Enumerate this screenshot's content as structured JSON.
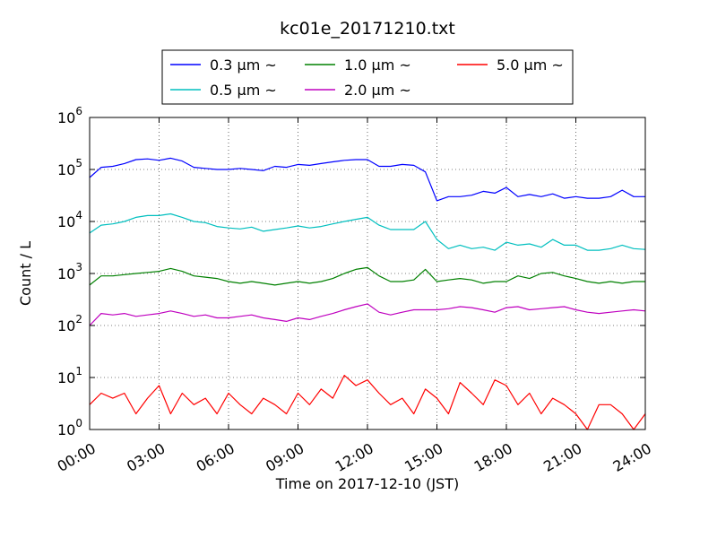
{
  "chart_data": {
    "type": "line",
    "title": "kc01e_20171210.txt",
    "xlabel": "Time on 2017-12-10 (JST)",
    "ylabel": "Count / L",
    "yscale": "log",
    "ylim": [
      1,
      1000000
    ],
    "xlim": [
      "00:00",
      "24:00"
    ],
    "xticks": [
      "00:00",
      "03:00",
      "06:00",
      "09:00",
      "12:00",
      "15:00",
      "18:00",
      "21:00",
      "24:00"
    ],
    "yticks": [
      {
        "base": "10",
        "exp": "0"
      },
      {
        "base": "10",
        "exp": "1"
      },
      {
        "base": "10",
        "exp": "2"
      },
      {
        "base": "10",
        "exp": "3"
      },
      {
        "base": "10",
        "exp": "4"
      },
      {
        "base": "10",
        "exp": "5"
      },
      {
        "base": "10",
        "exp": "6"
      }
    ],
    "grid": true,
    "legend_position": "top-center",
    "series": [
      {
        "name": "0.3 μm ~",
        "color": "#0000ff",
        "x": [
          "00:00",
          "00:30",
          "01:00",
          "01:30",
          "02:00",
          "02:30",
          "03:00",
          "03:30",
          "04:00",
          "04:30",
          "05:00",
          "05:30",
          "06:00",
          "06:30",
          "07:00",
          "07:30",
          "08:00",
          "08:30",
          "09:00",
          "09:30",
          "10:00",
          "10:30",
          "11:00",
          "11:30",
          "12:00",
          "12:30",
          "13:00",
          "13:30",
          "14:00",
          "14:30",
          "15:00",
          "15:30",
          "16:00",
          "16:30",
          "17:00",
          "17:30",
          "18:00",
          "18:30",
          "19:00",
          "19:30",
          "20:00",
          "20:30",
          "21:00",
          "21:30",
          "22:00",
          "22:30",
          "23:00",
          "23:30",
          "24:00"
        ],
        "values": [
          70000,
          110000,
          115000,
          130000,
          155000,
          160000,
          150000,
          165000,
          145000,
          110000,
          105000,
          100000,
          100000,
          105000,
          100000,
          95000,
          115000,
          110000,
          125000,
          120000,
          130000,
          140000,
          150000,
          155000,
          155000,
          115000,
          115000,
          125000,
          120000,
          90000,
          25000,
          30000,
          30000,
          32000,
          38000,
          35000,
          45000,
          30000,
          33000,
          30000,
          34000,
          28000,
          30000,
          28000,
          28000,
          30000,
          40000,
          30000,
          30000
        ]
      },
      {
        "name": "0.5 μm ~",
        "color": "#00bfbf",
        "x": [
          "00:00",
          "00:30",
          "01:00",
          "01:30",
          "02:00",
          "02:30",
          "03:00",
          "03:30",
          "04:00",
          "04:30",
          "05:00",
          "05:30",
          "06:00",
          "06:30",
          "07:00",
          "07:30",
          "08:00",
          "08:30",
          "09:00",
          "09:30",
          "10:00",
          "10:30",
          "11:00",
          "11:30",
          "12:00",
          "12:30",
          "13:00",
          "13:30",
          "14:00",
          "14:30",
          "15:00",
          "15:30",
          "16:00",
          "16:30",
          "17:00",
          "17:30",
          "18:00",
          "18:30",
          "19:00",
          "19:30",
          "20:00",
          "20:30",
          "21:00",
          "21:30",
          "22:00",
          "22:30",
          "23:00",
          "23:30",
          "24:00"
        ],
        "values": [
          6000,
          8500,
          9000,
          10000,
          12000,
          13000,
          13000,
          14000,
          12000,
          10000,
          9500,
          8000,
          7500,
          7200,
          7800,
          6500,
          7000,
          7500,
          8200,
          7500,
          8000,
          9000,
          10000,
          11000,
          12000,
          8500,
          7000,
          7000,
          7000,
          10000,
          4500,
          3000,
          3500,
          3000,
          3200,
          2800,
          4000,
          3500,
          3700,
          3200,
          4500,
          3500,
          3500,
          2800,
          2800,
          3000,
          3500,
          3000,
          2900
        ]
      },
      {
        "name": "1.0 μm ~",
        "color": "#008000",
        "x": [
          "00:00",
          "00:30",
          "01:00",
          "01:30",
          "02:00",
          "02:30",
          "03:00",
          "03:30",
          "04:00",
          "04:30",
          "05:00",
          "05:30",
          "06:00",
          "06:30",
          "07:00",
          "07:30",
          "08:00",
          "08:30",
          "09:00",
          "09:30",
          "10:00",
          "10:30",
          "11:00",
          "11:30",
          "12:00",
          "12:30",
          "13:00",
          "13:30",
          "14:00",
          "14:30",
          "15:00",
          "15:30",
          "16:00",
          "16:30",
          "17:00",
          "17:30",
          "18:00",
          "18:30",
          "19:00",
          "19:30",
          "20:00",
          "20:30",
          "21:00",
          "21:30",
          "22:00",
          "22:30",
          "23:00",
          "23:30",
          "24:00"
        ],
        "values": [
          600,
          900,
          900,
          950,
          1000,
          1050,
          1100,
          1250,
          1100,
          900,
          850,
          800,
          700,
          650,
          700,
          650,
          600,
          650,
          700,
          650,
          700,
          800,
          1000,
          1200,
          1300,
          900,
          700,
          700,
          750,
          1200,
          700,
          750,
          800,
          750,
          650,
          700,
          700,
          900,
          800,
          1000,
          1050,
          900,
          800,
          700,
          650,
          700,
          650,
          700,
          700
        ]
      },
      {
        "name": "2.0 μm ~",
        "color": "#bf00bf",
        "x": [
          "00:00",
          "00:30",
          "01:00",
          "01:30",
          "02:00",
          "02:30",
          "03:00",
          "03:30",
          "04:00",
          "04:30",
          "05:00",
          "05:30",
          "06:00",
          "06:30",
          "07:00",
          "07:30",
          "08:00",
          "08:30",
          "09:00",
          "09:30",
          "10:00",
          "10:30",
          "11:00",
          "11:30",
          "12:00",
          "12:30",
          "13:00",
          "13:30",
          "14:00",
          "14:30",
          "15:00",
          "15:30",
          "16:00",
          "16:30",
          "17:00",
          "17:30",
          "18:00",
          "18:30",
          "19:00",
          "19:30",
          "20:00",
          "20:30",
          "21:00",
          "21:30",
          "22:00",
          "22:30",
          "23:00",
          "23:30",
          "24:00"
        ],
        "values": [
          100,
          170,
          160,
          170,
          150,
          160,
          170,
          190,
          170,
          150,
          160,
          140,
          140,
          150,
          160,
          140,
          130,
          120,
          140,
          130,
          150,
          170,
          200,
          230,
          260,
          180,
          160,
          180,
          200,
          200,
          200,
          210,
          230,
          220,
          200,
          180,
          220,
          230,
          200,
          210,
          220,
          230,
          200,
          180,
          170,
          180,
          190,
          200,
          190
        ]
      },
      {
        "name": "5.0 μm ~",
        "color": "#ff0000",
        "x": [
          "00:00",
          "00:30",
          "01:00",
          "01:30",
          "02:00",
          "02:30",
          "03:00",
          "03:30",
          "04:00",
          "04:30",
          "05:00",
          "05:30",
          "06:00",
          "06:30",
          "07:00",
          "07:30",
          "08:00",
          "08:30",
          "09:00",
          "09:30",
          "10:00",
          "10:30",
          "11:00",
          "11:30",
          "12:00",
          "12:30",
          "13:00",
          "13:30",
          "14:00",
          "14:30",
          "15:00",
          "15:30",
          "16:00",
          "16:30",
          "17:00",
          "17:30",
          "18:00",
          "18:30",
          "19:00",
          "19:30",
          "20:00",
          "20:30",
          "21:00",
          "21:30",
          "22:00",
          "22:30",
          "23:00",
          "23:30",
          "24:00"
        ],
        "values": [
          3,
          5,
          4,
          5,
          2,
          4,
          7,
          2,
          5,
          3,
          4,
          2,
          5,
          3,
          2,
          4,
          3,
          2,
          5,
          3,
          6,
          4,
          11,
          7,
          9,
          5,
          3,
          4,
          2,
          6,
          4,
          2,
          8,
          5,
          3,
          9,
          7,
          3,
          5,
          2,
          4,
          3,
          2,
          1,
          3,
          3,
          2,
          1,
          2
        ]
      }
    ]
  }
}
